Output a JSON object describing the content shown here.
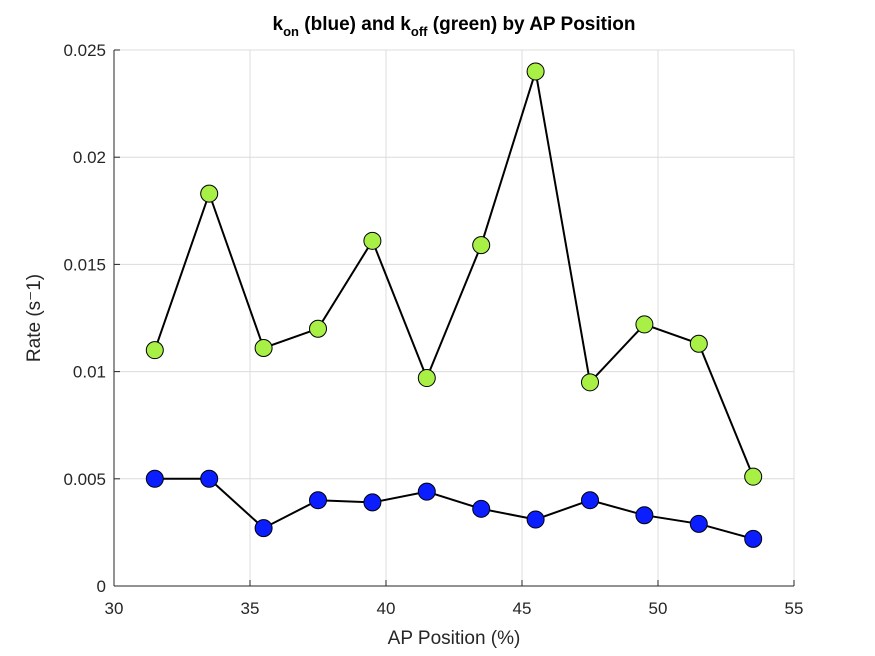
{
  "chart_data": {
    "type": "line",
    "title_parts": [
      {
        "text": "k",
        "sub": false
      },
      {
        "text": "on",
        "sub": true
      },
      {
        "text": " (blue) and k",
        "sub": false
      },
      {
        "text": "off",
        "sub": true
      },
      {
        "text": " (green) by AP Position",
        "sub": false
      }
    ],
    "xlabel": "AP Position (%)",
    "ylabel": "Rate (s⁻1)",
    "xlim": [
      30,
      55
    ],
    "ylim": [
      0,
      0.025
    ],
    "xticks": [
      30,
      35,
      40,
      45,
      50,
      55
    ],
    "yticks": [
      0,
      0.005,
      0.01,
      0.015,
      0.02,
      0.025
    ],
    "xtick_labels": [
      "30",
      "35",
      "40",
      "45",
      "50",
      "55"
    ],
    "ytick_labels": [
      "0",
      "0.005",
      "0.01",
      "0.015",
      "0.02",
      "0.025"
    ],
    "grid": true,
    "x": [
      31.5,
      33.5,
      35.5,
      37.5,
      39.5,
      41.5,
      43.5,
      45.5,
      47.5,
      49.5,
      51.5,
      53.5
    ],
    "series": [
      {
        "key": "koff",
        "color": "#a8f046",
        "line_color": "#000000",
        "marker": "circle",
        "values": [
          0.011,
          0.0183,
          0.0111,
          0.012,
          0.0161,
          0.0097,
          0.0159,
          0.024,
          0.0095,
          0.0122,
          0.0113,
          0.0051
        ]
      },
      {
        "key": "kon",
        "color": "#0a1eff",
        "line_color": "#000000",
        "marker": "circle",
        "values": [
          0.005,
          0.005,
          0.0027,
          0.004,
          0.0039,
          0.0044,
          0.0036,
          0.0031,
          0.004,
          0.0033,
          0.0029,
          0.0022
        ]
      }
    ]
  }
}
